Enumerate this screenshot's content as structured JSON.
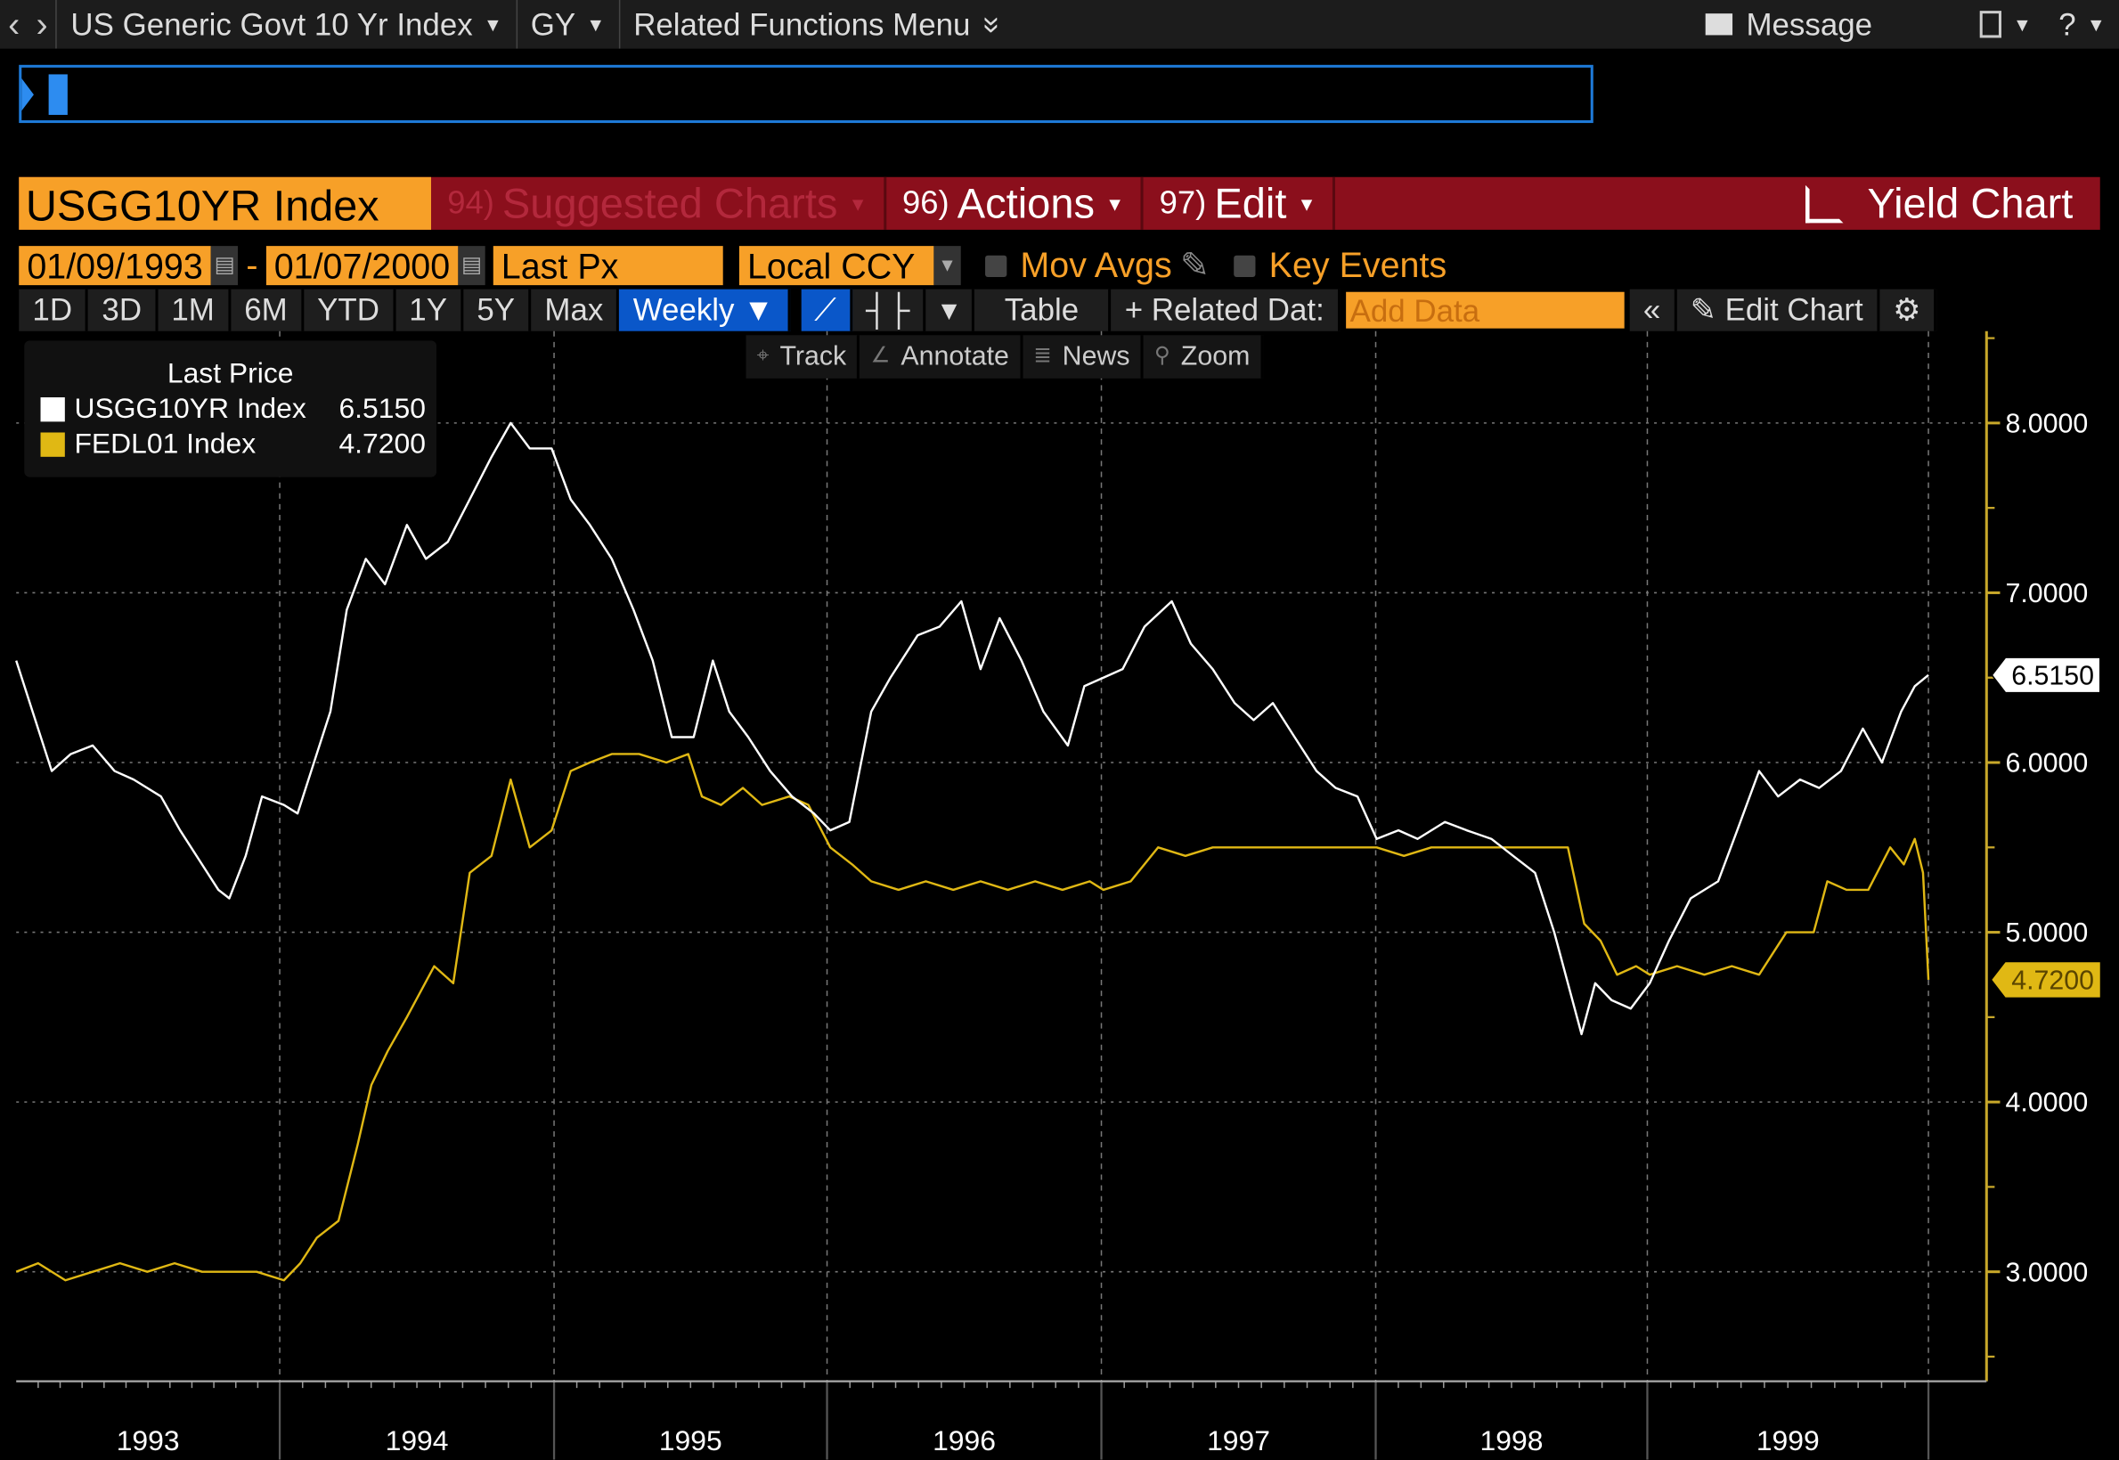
{
  "topbar": {
    "back": "‹",
    "forward": "›",
    "security": "US Generic Govt 10 Yr Index",
    "function": "GY",
    "related": "Related Functions Menu",
    "related_icon": "»",
    "message": "Message",
    "help": "?"
  },
  "redbar": {
    "ticker": "USGG10YR Index",
    "suggested_num": "94)",
    "suggested": "Suggested Charts",
    "actions_num": "96)",
    "actions": "Actions",
    "edit_num": "97)",
    "edit": "Edit",
    "yield_chart": "Yield Chart"
  },
  "controls": {
    "start_date": "01/09/1993",
    "sep": "-",
    "end_date": "01/07/2000",
    "field": "Last Px",
    "currency": "Local CCY",
    "mov_avgs": "Mov Avgs",
    "key_events": "Key Events"
  },
  "toolbar": {
    "periods": [
      "1D",
      "3D",
      "1M",
      "6M",
      "YTD",
      "1Y",
      "5Y",
      "Max"
    ],
    "frequency": "Weekly ▼",
    "table": "Table",
    "related_data": "+ Related Dat:",
    "add_data_placeholder": "Add Data",
    "collapse": "«",
    "edit_chart": "Edit Chart"
  },
  "tools": {
    "track": "Track",
    "annotate": "Annotate",
    "news": "News",
    "zoom": "Zoom"
  },
  "legend": {
    "title": "Last Price",
    "items": [
      {
        "name": "USGG10YR Index",
        "value": "6.5150",
        "color": "#ffffff"
      },
      {
        "name": "FEDL01 Index",
        "value": "4.7200",
        "color": "#e0b814"
      }
    ]
  },
  "chart_data": {
    "type": "line",
    "title": "",
    "xlabel": "",
    "ylabel": "",
    "ylim": [
      2.5,
      8.5
    ],
    "yticks": [
      3,
      4,
      5,
      6,
      7,
      8
    ],
    "ytick_labels": [
      "3.0000",
      "4.0000",
      "5.0000",
      "6.0000",
      "7.0000",
      "8.0000"
    ],
    "xlim": [
      1993.02,
      2000.02
    ],
    "xtick_labels": [
      "1993",
      "1994",
      "1995",
      "1996",
      "1997",
      "1998",
      "1999"
    ],
    "grid": true,
    "axis_color": "#c8a82a",
    "series": [
      {
        "name": "USGG10YR Index",
        "color": "#ffffff",
        "last": "6.5150",
        "points": [
          [
            1993.02,
            6.6
          ],
          [
            1993.08,
            6.3
          ],
          [
            1993.15,
            5.95
          ],
          [
            1993.22,
            6.05
          ],
          [
            1993.3,
            6.1
          ],
          [
            1993.38,
            5.95
          ],
          [
            1993.45,
            5.9
          ],
          [
            1993.55,
            5.8
          ],
          [
            1993.62,
            5.6
          ],
          [
            1993.7,
            5.4
          ],
          [
            1993.76,
            5.25
          ],
          [
            1993.8,
            5.2
          ],
          [
            1993.86,
            5.45
          ],
          [
            1993.92,
            5.8
          ],
          [
            1994.0,
            5.75
          ],
          [
            1994.05,
            5.7
          ],
          [
            1994.1,
            5.95
          ],
          [
            1994.17,
            6.3
          ],
          [
            1994.23,
            6.9
          ],
          [
            1994.3,
            7.2
          ],
          [
            1994.37,
            7.05
          ],
          [
            1994.45,
            7.4
          ],
          [
            1994.52,
            7.2
          ],
          [
            1994.6,
            7.3
          ],
          [
            1994.68,
            7.55
          ],
          [
            1994.76,
            7.8
          ],
          [
            1994.83,
            8.0
          ],
          [
            1994.9,
            7.85
          ],
          [
            1994.98,
            7.85
          ],
          [
            1995.05,
            7.55
          ],
          [
            1995.12,
            7.4
          ],
          [
            1995.2,
            7.2
          ],
          [
            1995.28,
            6.9
          ],
          [
            1995.35,
            6.6
          ],
          [
            1995.42,
            6.15
          ],
          [
            1995.5,
            6.15
          ],
          [
            1995.57,
            6.6
          ],
          [
            1995.63,
            6.3
          ],
          [
            1995.7,
            6.15
          ],
          [
            1995.78,
            5.95
          ],
          [
            1995.86,
            5.8
          ],
          [
            1995.94,
            5.7
          ],
          [
            1996.0,
            5.6
          ],
          [
            1996.07,
            5.65
          ],
          [
            1996.15,
            6.3
          ],
          [
            1996.22,
            6.5
          ],
          [
            1996.32,
            6.75
          ],
          [
            1996.4,
            6.8
          ],
          [
            1996.48,
            6.95
          ],
          [
            1996.55,
            6.55
          ],
          [
            1996.62,
            6.85
          ],
          [
            1996.7,
            6.6
          ],
          [
            1996.78,
            6.3
          ],
          [
            1996.87,
            6.1
          ],
          [
            1996.93,
            6.45
          ],
          [
            1997.0,
            6.5
          ],
          [
            1997.07,
            6.55
          ],
          [
            1997.15,
            6.8
          ],
          [
            1997.25,
            6.95
          ],
          [
            1997.32,
            6.7
          ],
          [
            1997.4,
            6.55
          ],
          [
            1997.48,
            6.35
          ],
          [
            1997.55,
            6.25
          ],
          [
            1997.62,
            6.35
          ],
          [
            1997.7,
            6.15
          ],
          [
            1997.78,
            5.95
          ],
          [
            1997.85,
            5.85
          ],
          [
            1997.93,
            5.8
          ],
          [
            1998.0,
            5.55
          ],
          [
            1998.08,
            5.6
          ],
          [
            1998.15,
            5.55
          ],
          [
            1998.25,
            5.65
          ],
          [
            1998.33,
            5.6
          ],
          [
            1998.42,
            5.55
          ],
          [
            1998.5,
            5.45
          ],
          [
            1998.58,
            5.35
          ],
          [
            1998.65,
            5.0
          ],
          [
            1998.7,
            4.7
          ],
          [
            1998.75,
            4.4
          ],
          [
            1998.8,
            4.7
          ],
          [
            1998.86,
            4.6
          ],
          [
            1998.93,
            4.55
          ],
          [
            1999.0,
            4.7
          ],
          [
            1999.07,
            4.95
          ],
          [
            1999.15,
            5.2
          ],
          [
            1999.25,
            5.3
          ],
          [
            1999.32,
            5.6
          ],
          [
            1999.4,
            5.95
          ],
          [
            1999.47,
            5.8
          ],
          [
            1999.55,
            5.9
          ],
          [
            1999.62,
            5.85
          ],
          [
            1999.7,
            5.95
          ],
          [
            1999.78,
            6.2
          ],
          [
            1999.85,
            6.0
          ],
          [
            1999.92,
            6.3
          ],
          [
            1999.97,
            6.45
          ],
          [
            2000.02,
            6.515
          ]
        ]
      },
      {
        "name": "FEDL01 Index",
        "color": "#e0b814",
        "last": "4.7200",
        "points": [
          [
            1993.02,
            3.0
          ],
          [
            1993.1,
            3.05
          ],
          [
            1993.2,
            2.95
          ],
          [
            1993.3,
            3.0
          ],
          [
            1993.4,
            3.05
          ],
          [
            1993.5,
            3.0
          ],
          [
            1993.6,
            3.05
          ],
          [
            1993.7,
            3.0
          ],
          [
            1993.8,
            3.0
          ],
          [
            1993.9,
            3.0
          ],
          [
            1994.0,
            2.95
          ],
          [
            1994.06,
            3.05
          ],
          [
            1994.12,
            3.2
          ],
          [
            1994.2,
            3.3
          ],
          [
            1994.27,
            3.75
          ],
          [
            1994.32,
            4.1
          ],
          [
            1994.38,
            4.3
          ],
          [
            1994.45,
            4.5
          ],
          [
            1994.55,
            4.8
          ],
          [
            1994.62,
            4.7
          ],
          [
            1994.68,
            5.35
          ],
          [
            1994.76,
            5.45
          ],
          [
            1994.83,
            5.9
          ],
          [
            1994.9,
            5.5
          ],
          [
            1994.98,
            5.6
          ],
          [
            1995.05,
            5.95
          ],
          [
            1995.12,
            6.0
          ],
          [
            1995.2,
            6.05
          ],
          [
            1995.3,
            6.05
          ],
          [
            1995.4,
            6.0
          ],
          [
            1995.48,
            6.05
          ],
          [
            1995.53,
            5.8
          ],
          [
            1995.6,
            5.75
          ],
          [
            1995.68,
            5.85
          ],
          [
            1995.75,
            5.75
          ],
          [
            1995.85,
            5.8
          ],
          [
            1995.92,
            5.75
          ],
          [
            1996.0,
            5.5
          ],
          [
            1996.08,
            5.4
          ],
          [
            1996.15,
            5.3
          ],
          [
            1996.25,
            5.25
          ],
          [
            1996.35,
            5.3
          ],
          [
            1996.45,
            5.25
          ],
          [
            1996.55,
            5.3
          ],
          [
            1996.65,
            5.25
          ],
          [
            1996.75,
            5.3
          ],
          [
            1996.85,
            5.25
          ],
          [
            1996.95,
            5.3
          ],
          [
            1997.0,
            5.25
          ],
          [
            1997.1,
            5.3
          ],
          [
            1997.2,
            5.5
          ],
          [
            1997.3,
            5.45
          ],
          [
            1997.4,
            5.5
          ],
          [
            1997.5,
            5.5
          ],
          [
            1997.6,
            5.5
          ],
          [
            1997.7,
            5.5
          ],
          [
            1997.8,
            5.5
          ],
          [
            1997.9,
            5.5
          ],
          [
            1998.0,
            5.5
          ],
          [
            1998.1,
            5.45
          ],
          [
            1998.2,
            5.5
          ],
          [
            1998.3,
            5.5
          ],
          [
            1998.4,
            5.5
          ],
          [
            1998.5,
            5.5
          ],
          [
            1998.6,
            5.5
          ],
          [
            1998.7,
            5.5
          ],
          [
            1998.76,
            5.05
          ],
          [
            1998.82,
            4.95
          ],
          [
            1998.88,
            4.75
          ],
          [
            1998.95,
            4.8
          ],
          [
            1999.0,
            4.75
          ],
          [
            1999.1,
            4.8
          ],
          [
            1999.2,
            4.75
          ],
          [
            1999.3,
            4.8
          ],
          [
            1999.4,
            4.75
          ],
          [
            1999.5,
            5.0
          ],
          [
            1999.6,
            5.0
          ],
          [
            1999.65,
            5.3
          ],
          [
            1999.72,
            5.25
          ],
          [
            1999.8,
            5.25
          ],
          [
            1999.88,
            5.5
          ],
          [
            1999.93,
            5.4
          ],
          [
            1999.97,
            5.55
          ],
          [
            2000.0,
            5.35
          ],
          [
            2000.02,
            4.72
          ]
        ]
      }
    ]
  }
}
